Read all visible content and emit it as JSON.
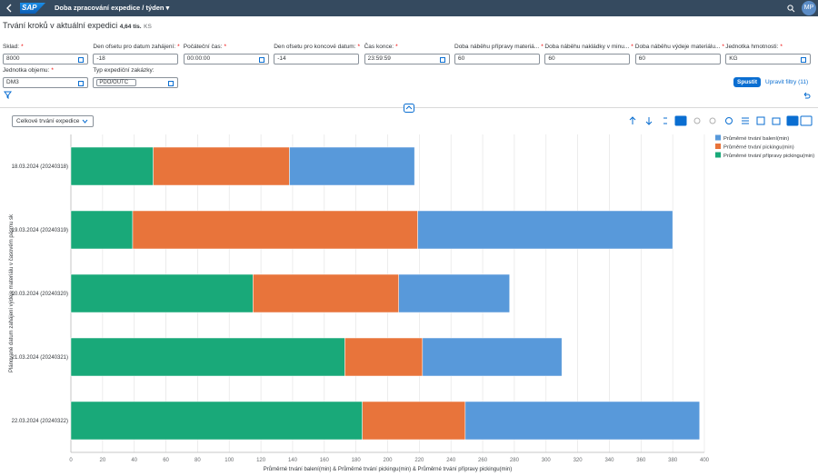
{
  "shell": {
    "logo": "SAP",
    "title": "Doba zpracování expedice / týden",
    "avatar": "MP"
  },
  "header": {
    "title": "Trvání kroků v aktuální expedici",
    "count": "4,64 tis.",
    "unit": "KS"
  },
  "filters": {
    "required_mark": "*",
    "fields": [
      {
        "label": "Sklad:",
        "required": true,
        "value": "8000"
      },
      {
        "label": "Den ofsetu pro datum zahájení:",
        "required": true,
        "value": "-18"
      },
      {
        "label": "Počáteční čas:",
        "required": true,
        "value": "00:00:00"
      },
      {
        "label": "Den ofsetu pro koncové datum:",
        "required": true,
        "value": "-14"
      },
      {
        "label": "Čas konce:",
        "required": true,
        "value": "23:59:59"
      },
      {
        "label": "Doba náběhu přípravy materiá...",
        "required": true,
        "value": "60"
      },
      {
        "label": "Doba náběhu nakládky v minu...",
        "required": true,
        "value": "60"
      },
      {
        "label": "Doba náběhu výdeje materiálu...",
        "required": true,
        "value": "60"
      },
      {
        "label": "Jednotka hmotnosti:",
        "required": true,
        "value": "KG"
      },
      {
        "label": "Jednotka objemu:",
        "required": true,
        "value": "DM3"
      },
      {
        "label": "Typ expediční zakázky:",
        "required": false,
        "token": "PDO/OUTC"
      }
    ]
  },
  "buttons": {
    "go": "Spustit",
    "adapt": "Upravit filtry (11)"
  },
  "toolbar": {
    "dropdown": "Celkové trvání expedice"
  },
  "chart_data": {
    "type": "stacked-bar-horizontal",
    "categories": [
      "18.03.2024 (20240318)",
      "19.03.2024 (20240319)",
      "20.03.2024 (20240320)",
      "21.03.2024 (20240321)",
      "22.03.2024 (20240322)"
    ],
    "series": [
      {
        "name": "Průměrné trvání balení(min)",
        "color": "#5899da",
        "values": [
          79,
          161,
          70,
          88,
          148
        ]
      },
      {
        "name": "Průměrné trvání pickingu(min)",
        "color": "#e8743b",
        "values": [
          86,
          180,
          92,
          49,
          65
        ]
      },
      {
        "name": "Průměrné trvání přípravy pickingu(min)",
        "color": "#19a979",
        "values": [
          52,
          39,
          115,
          173,
          184
        ]
      }
    ],
    "xlim": [
      0,
      400
    ],
    "xticks": [
      0,
      20,
      40,
      60,
      80,
      100,
      120,
      140,
      160,
      180,
      200,
      220,
      240,
      260,
      280,
      300,
      320,
      340,
      360,
      380,
      400
    ],
    "x_label": "Průměrné trvání balení(min) & Průměrné trvání pickingu(min) & Průměrné trvání přípravy pickingu(min)",
    "y_label": "Plánované datum zahájení výdeje materiálu v časovém pásmu sk",
    "grid": true,
    "legend": "top-right"
  }
}
